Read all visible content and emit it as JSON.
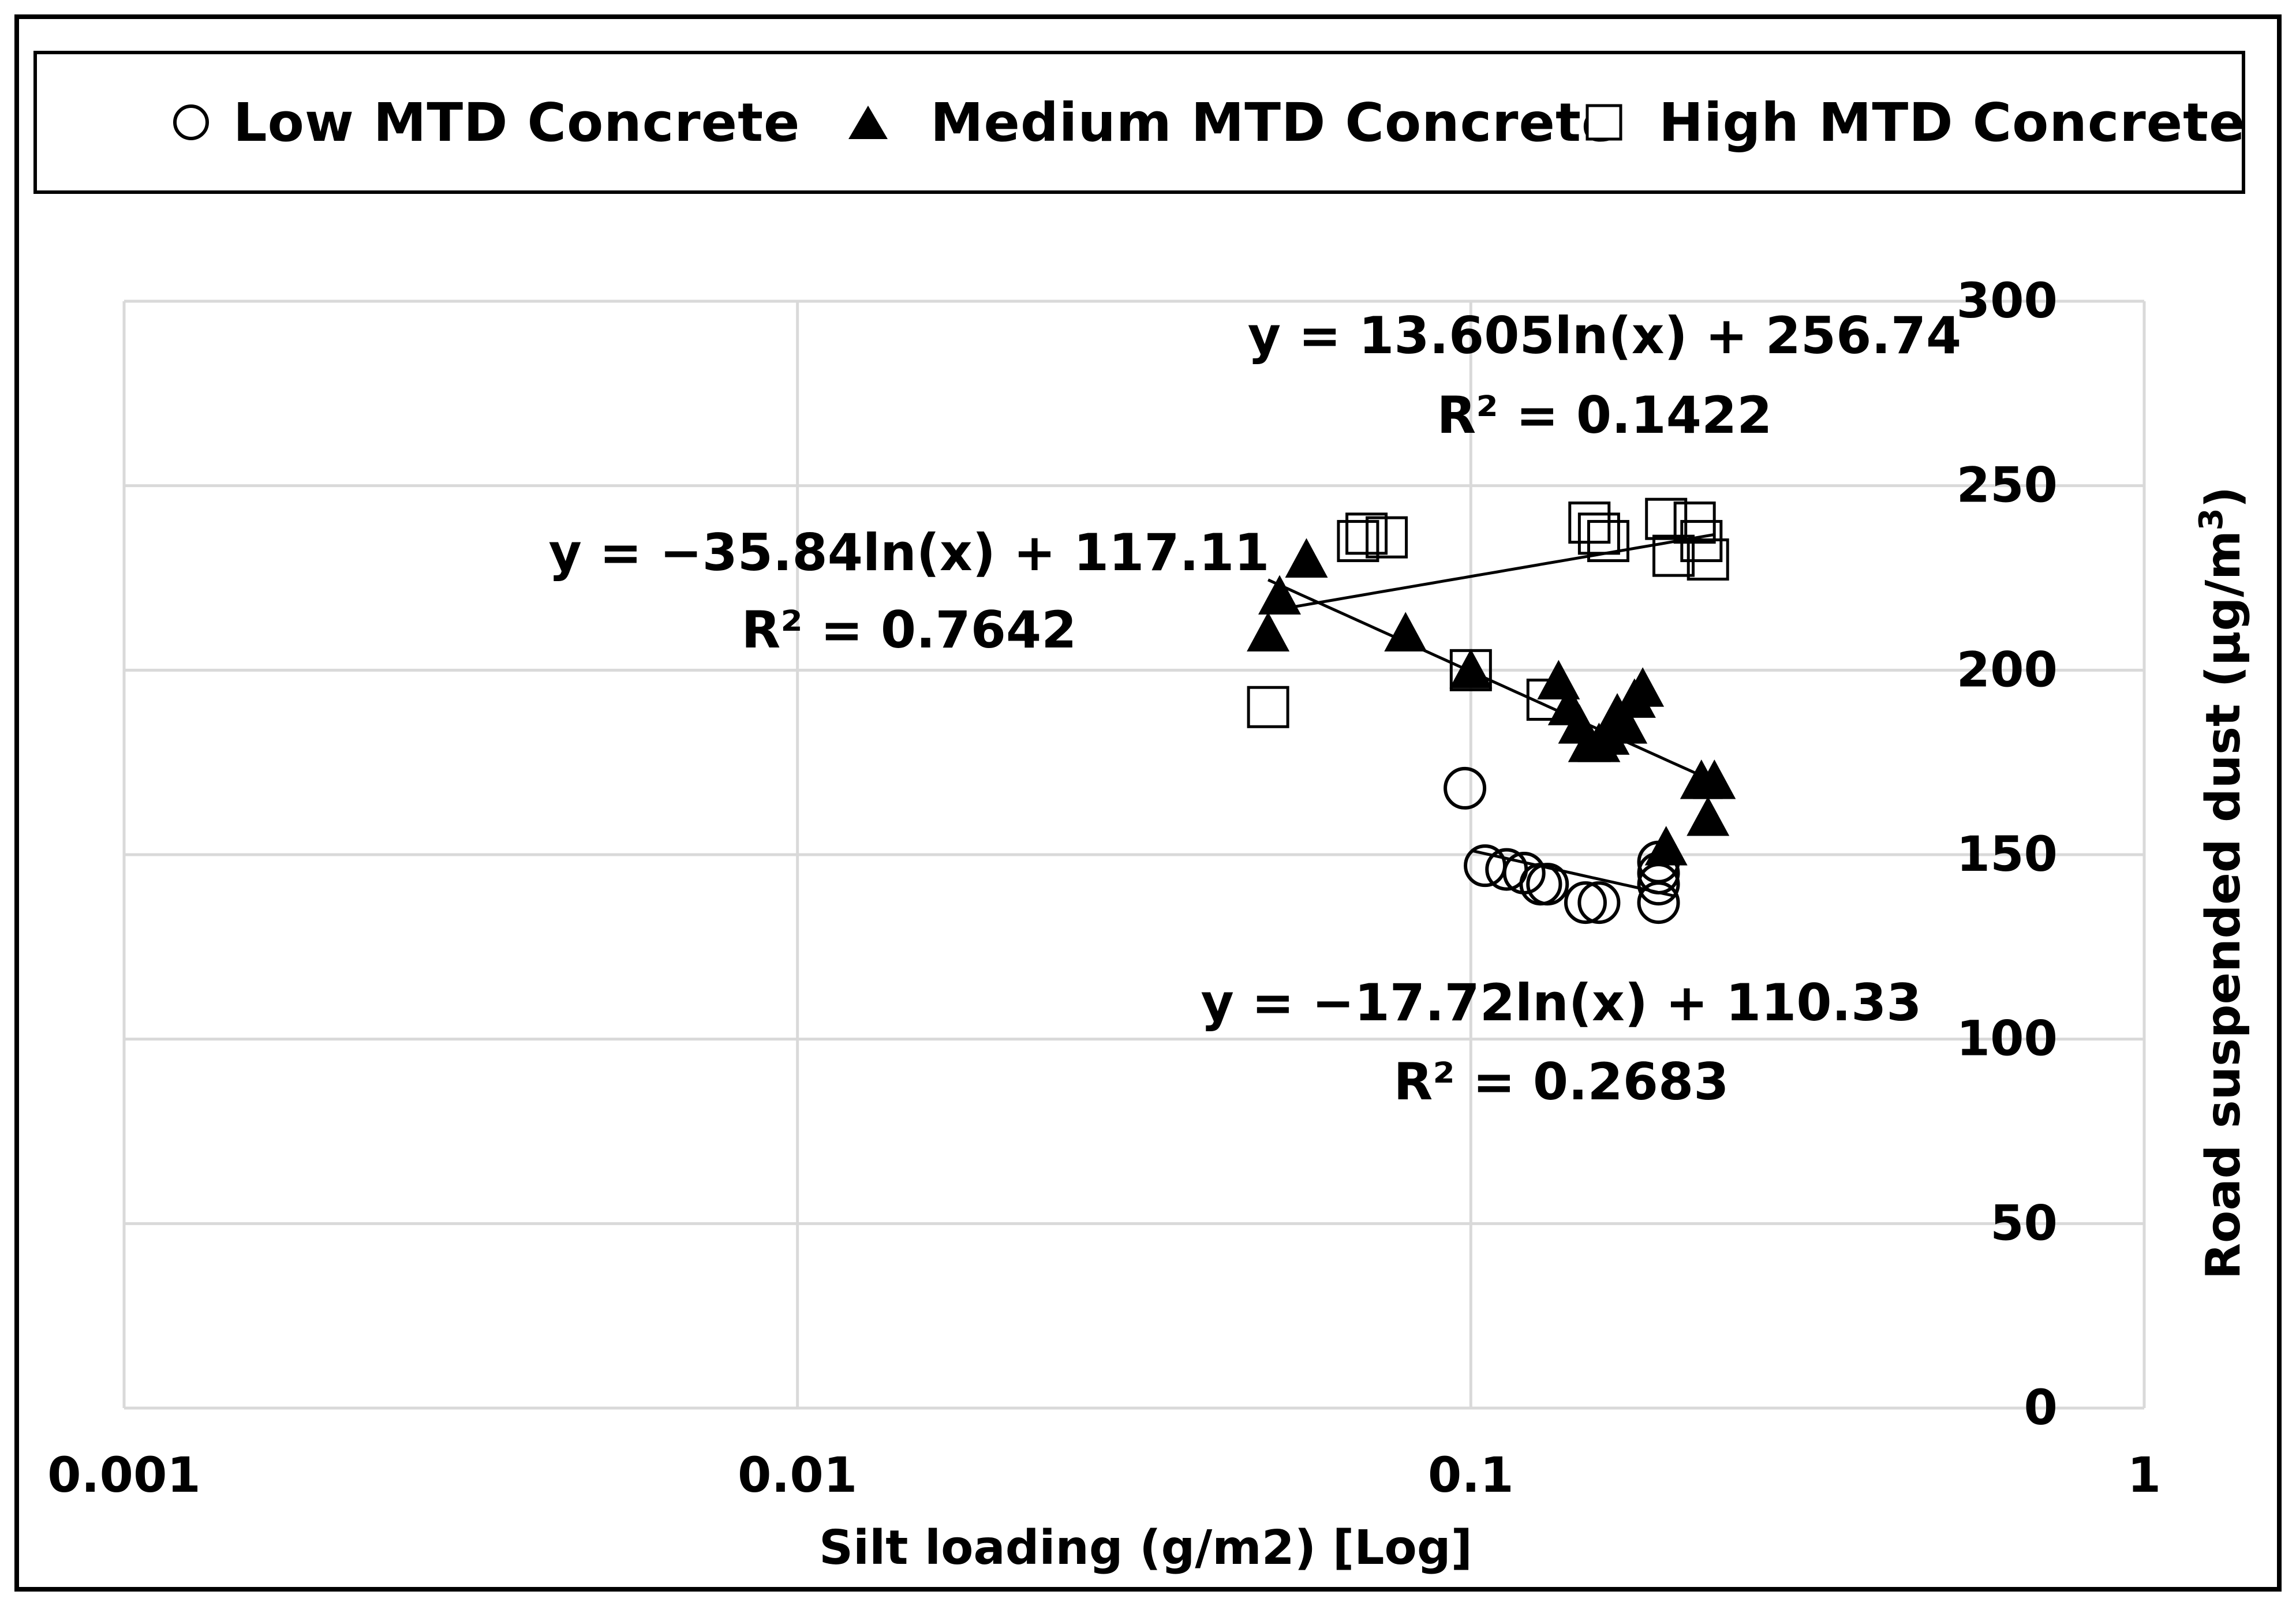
{
  "chart_data": {
    "type": "scatter",
    "title": "",
    "xlabel": "Silt loading (g/m2) [Log]",
    "ylabel": "Road suspended dust (μg/m3)",
    "xscale": "log",
    "xlim": [
      0.001,
      1
    ],
    "ylim": [
      0,
      300
    ],
    "x_ticks": [
      0.001,
      0.01,
      0.1,
      1
    ],
    "x_tick_labels": [
      "0.001",
      "0.01",
      "0.1",
      "1"
    ],
    "y_ticks": [
      0,
      50,
      100,
      150,
      200,
      250,
      300
    ],
    "y_tick_labels": [
      "0",
      "50",
      "100",
      "150",
      "200",
      "250",
      "300"
    ],
    "grid": true,
    "legend_position": "top",
    "series": [
      {
        "name": "Low MTD Concrete",
        "marker": "open-circle",
        "x": [
          0.098,
          0.105,
          0.113,
          0.12,
          0.127,
          0.13,
          0.148,
          0.155,
          0.19,
          0.19,
          0.19,
          0.19
        ],
        "y": [
          168,
          147,
          146,
          145,
          142,
          142,
          137,
          137,
          137,
          142,
          145,
          148
        ],
        "trendline": {
          "equation": "y = −17.72ln(x) + 110.33",
          "r2": "R² = 0.2683",
          "a": -17.72,
          "b": 110.33,
          "x_range": [
            0.1,
            0.2
          ]
        }
      },
      {
        "name": "Medium MTD Concrete",
        "marker": "filled-triangle",
        "x": [
          0.05,
          0.052,
          0.057,
          0.08,
          0.1,
          0.135,
          0.14,
          0.145,
          0.15,
          0.155,
          0.16,
          0.165,
          0.17,
          0.175,
          0.18,
          0.195,
          0.22,
          0.23,
          0.225
        ],
        "y": [
          210,
          220,
          230,
          210,
          200,
          197,
          190,
          185,
          180,
          180,
          182,
          188,
          185,
          192,
          195,
          152,
          170,
          170,
          160
        ],
        "trendline": {
          "equation": "y = −35.84ln(x) + 117.11",
          "r2": "R² = 0.7642",
          "a": -35.84,
          "b": 117.11,
          "x_range": [
            0.05,
            0.23
          ]
        }
      },
      {
        "name": "High MTD Concrete",
        "marker": "open-square",
        "x": [
          0.05,
          0.068,
          0.07,
          0.075,
          0.1,
          0.13,
          0.15,
          0.155,
          0.16,
          0.195,
          0.2,
          0.215,
          0.22,
          0.225
        ],
        "y": [
          190,
          235,
          237,
          236,
          200,
          192,
          240,
          237,
          235,
          241,
          231,
          240,
          235,
          230
        ],
        "trendline": {
          "equation": "y = 13.605ln(x) + 256.74",
          "r2": "R² = 0.1422",
          "a": 13.605,
          "b": 256.74,
          "x_range": [
            0.052,
            0.23
          ]
        }
      }
    ]
  },
  "colors": {
    "grid": "#d9d9d9",
    "ink": "#000000",
    "background": "#ffffff"
  }
}
